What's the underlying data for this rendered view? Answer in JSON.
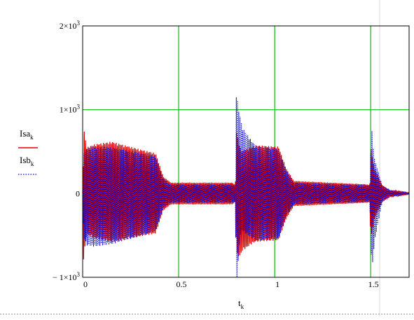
{
  "chart_data": {
    "type": "line",
    "xlabel": "t",
    "xlabel_sub": "k",
    "xlim": [
      0,
      1.7
    ],
    "ylim": [
      -1000,
      2000
    ],
    "x_ticks": [
      {
        "value": 0,
        "label": "0"
      },
      {
        "value": 0.5,
        "label": "0.5"
      },
      {
        "value": 1,
        "label": "1"
      },
      {
        "value": 1.5,
        "label": "1.5"
      }
    ],
    "y_ticks": [
      {
        "value": 2000,
        "label": "2×10",
        "exp": "3"
      },
      {
        "value": 1000,
        "label": "1×10",
        "exp": "3"
      },
      {
        "value": 0,
        "label": "0",
        "exp": ""
      },
      {
        "value": -1000,
        "label": "− 1×10",
        "exp": "3"
      }
    ],
    "grid": {
      "x": [
        0.5,
        1,
        1.5
      ],
      "y": [
        1000
      ],
      "color": "#00c000"
    },
    "legend_position": "left",
    "series": [
      {
        "name": "Isa",
        "sub": "k",
        "color": "#dd0000",
        "style": "solid",
        "phase": 0,
        "envelope": [
          [
            0,
            20
          ],
          [
            0.005,
            800
          ],
          [
            0.02,
            520
          ],
          [
            0.06,
            560
          ],
          [
            0.15,
            600
          ],
          [
            0.3,
            520
          ],
          [
            0.38,
            480
          ],
          [
            0.42,
            200
          ],
          [
            0.46,
            130
          ],
          [
            0.78,
            130
          ],
          [
            0.795,
            100
          ],
          [
            0.8,
            750
          ],
          [
            0.83,
            600
          ],
          [
            0.88,
            580
          ],
          [
            1.02,
            560
          ],
          [
            1.06,
            300
          ],
          [
            1.1,
            150
          ],
          [
            1.48,
            110
          ],
          [
            1.495,
            100
          ],
          [
            1.5,
            550
          ],
          [
            1.52,
            300
          ],
          [
            1.56,
            100
          ],
          [
            1.6,
            40
          ],
          [
            1.7,
            10
          ]
        ],
        "offset": [
          [
            0,
            0
          ],
          [
            0.02,
            30
          ],
          [
            0.4,
            0
          ],
          [
            0.8,
            0
          ],
          [
            0.82,
            -100
          ],
          [
            0.9,
            0
          ],
          [
            1.7,
            0
          ]
        ]
      },
      {
        "name": "Isb",
        "sub": "k",
        "color": "#0000cc",
        "style": "dotted",
        "phase": 1.5708,
        "envelope": [
          [
            0,
            20
          ],
          [
            0.005,
            500
          ],
          [
            0.02,
            580
          ],
          [
            0.06,
            600
          ],
          [
            0.15,
            580
          ],
          [
            0.3,
            500
          ],
          [
            0.38,
            450
          ],
          [
            0.42,
            180
          ],
          [
            0.46,
            110
          ],
          [
            0.78,
            110
          ],
          [
            0.795,
            100
          ],
          [
            0.8,
            1250
          ],
          [
            0.815,
            800
          ],
          [
            0.83,
            620
          ],
          [
            0.88,
            580
          ],
          [
            1.02,
            540
          ],
          [
            1.06,
            280
          ],
          [
            1.1,
            130
          ],
          [
            1.48,
            100
          ],
          [
            1.495,
            100
          ],
          [
            1.505,
            850
          ],
          [
            1.52,
            500
          ],
          [
            1.56,
            100
          ],
          [
            1.6,
            40
          ],
          [
            1.7,
            10
          ]
        ],
        "offset": [
          [
            0,
            0
          ],
          [
            0.02,
            -40
          ],
          [
            0.4,
            0
          ],
          [
            0.8,
            0
          ],
          [
            0.82,
            200
          ],
          [
            0.9,
            0
          ],
          [
            1.5,
            0
          ],
          [
            1.51,
            -100
          ],
          [
            1.56,
            0
          ],
          [
            1.7,
            0
          ]
        ]
      }
    ]
  }
}
